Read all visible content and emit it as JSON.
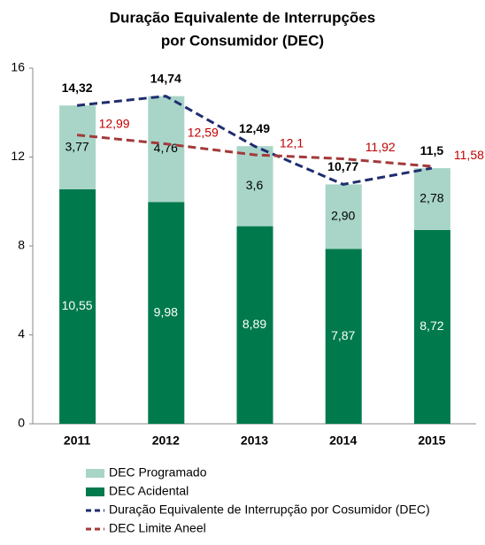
{
  "chart_data": {
    "type": "bar",
    "title": [
      "Duração Equivalente de Interrupções",
      "por Consumidor (DEC)"
    ],
    "categories": [
      "2011",
      "2012",
      "2013",
      "2014",
      "2015"
    ],
    "ylim": [
      0,
      16
    ],
    "yticks": [
      0,
      4,
      8,
      12,
      16
    ],
    "series": [
      {
        "name": "DEC Programado",
        "type": "bar",
        "color": "#a8d5c8",
        "label_color": "#000",
        "values": [
          3.77,
          4.76,
          3.6,
          2.9,
          2.78
        ],
        "value_labels": [
          "3,77",
          "4,76",
          "3,6",
          "2,90",
          "2,78"
        ]
      },
      {
        "name": "DEC Acidental",
        "type": "bar",
        "color": "#007a4d",
        "label_color": "#fff",
        "values": [
          10.55,
          9.98,
          8.89,
          7.87,
          8.72
        ],
        "value_labels": [
          "10,55",
          "9,98",
          "8,89",
          "7,87",
          "8,72"
        ]
      },
      {
        "name": "Duração Equivalente de Interrupção por Cosumidor (DEC)",
        "type": "line",
        "color": "#1f2d6e",
        "label_color": "#000",
        "values": [
          14.32,
          14.74,
          12.49,
          10.77,
          11.5
        ],
        "value_labels": [
          "14,32",
          "14,74",
          "12,49",
          "10,77",
          "11,5"
        ]
      },
      {
        "name": "DEC Limite Aneel",
        "type": "line",
        "color": "#a33a3a",
        "label_color": "#c00000",
        "values": [
          12.99,
          12.59,
          12.1,
          11.92,
          11.58
        ],
        "value_labels": [
          "12,99",
          "12,59",
          "12,1",
          "11,92",
          "11,58"
        ]
      }
    ]
  }
}
